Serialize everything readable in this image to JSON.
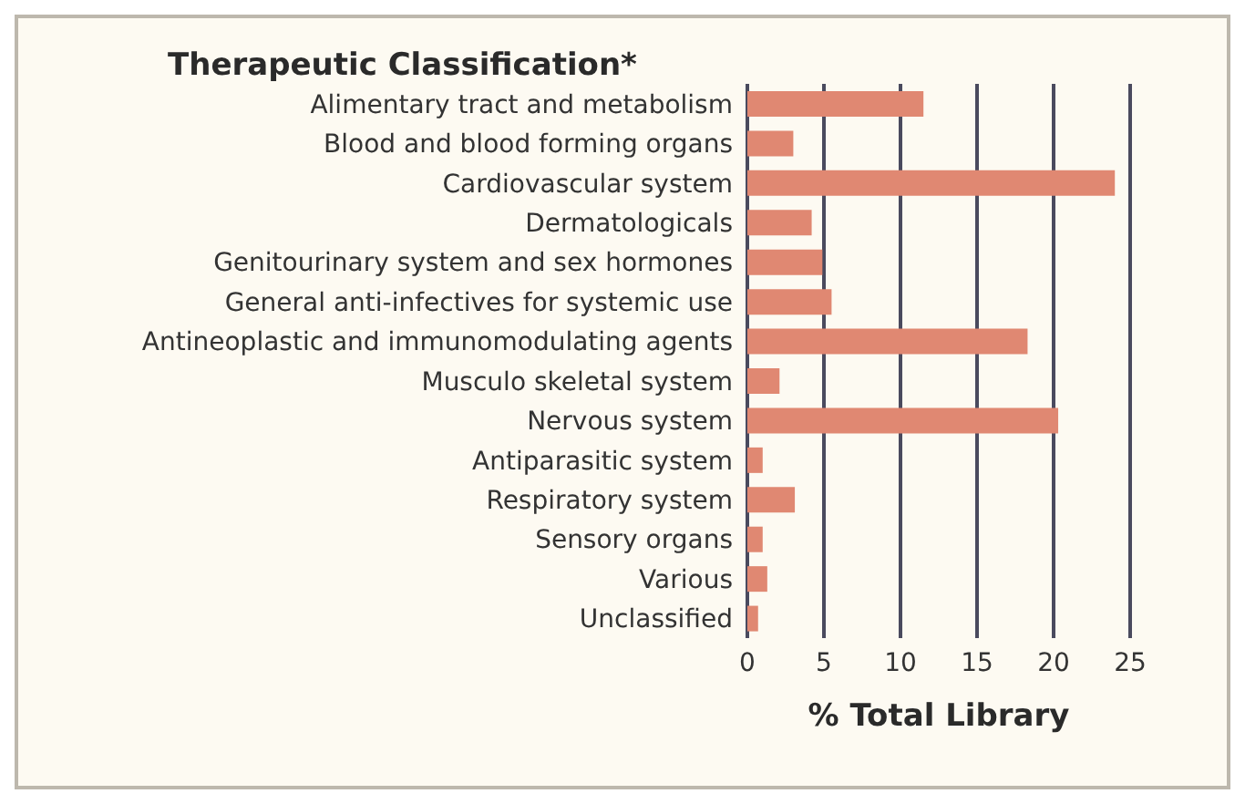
{
  "chart_data": {
    "type": "bar",
    "orientation": "horizontal",
    "title": "Therapeutic Classification*",
    "xlabel": "% Total Library",
    "categories": [
      "Alimentary tract and metabolism",
      "Blood and blood forming organs",
      "Cardiovascular system",
      "Dermatologicals",
      "Genitourinary system and sex hormones",
      "General anti-infectives for systemic use",
      "Antineoplastic and immunomodulating agents",
      "Musculo skeletal system",
      "Nervous system",
      "Antiparasitic system",
      "Respiratory system",
      "Sensory organs",
      "Various",
      "Unclassified"
    ],
    "values": [
      11.5,
      3.0,
      24.0,
      4.2,
      4.9,
      5.5,
      18.3,
      2.1,
      20.3,
      1.0,
      3.1,
      1.0,
      1.3,
      0.7
    ],
    "color": "#e08872",
    "xlim": [
      0,
      25
    ],
    "xticks": [
      0,
      5,
      10,
      15,
      20,
      25
    ],
    "grid": "x"
  }
}
